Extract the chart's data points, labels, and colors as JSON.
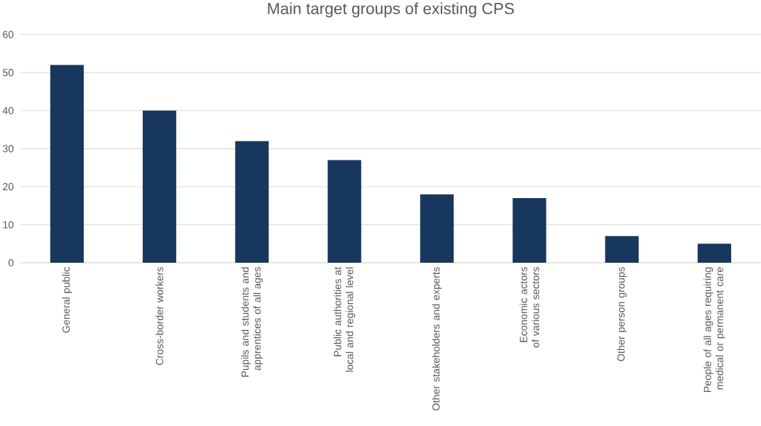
{
  "chart_data": {
    "type": "bar",
    "title": "Main target groups of existing CPS",
    "categories": [
      "General public",
      "Cross-border workers",
      "Pupils and students and apprentices of all ages",
      "Public authorities at local and regional level",
      "Other stakeholders and experts",
      "Economic actors of various sectors",
      "Other person groups",
      "People of all ages requiring medical or permanent care"
    ],
    "values": [
      52,
      40,
      32,
      27,
      18,
      17,
      7,
      5
    ],
    "color": "#17375e",
    "ylim": [
      0,
      60
    ],
    "yticks": [
      0,
      10,
      20,
      30,
      40,
      50,
      60
    ],
    "grid": "y"
  }
}
